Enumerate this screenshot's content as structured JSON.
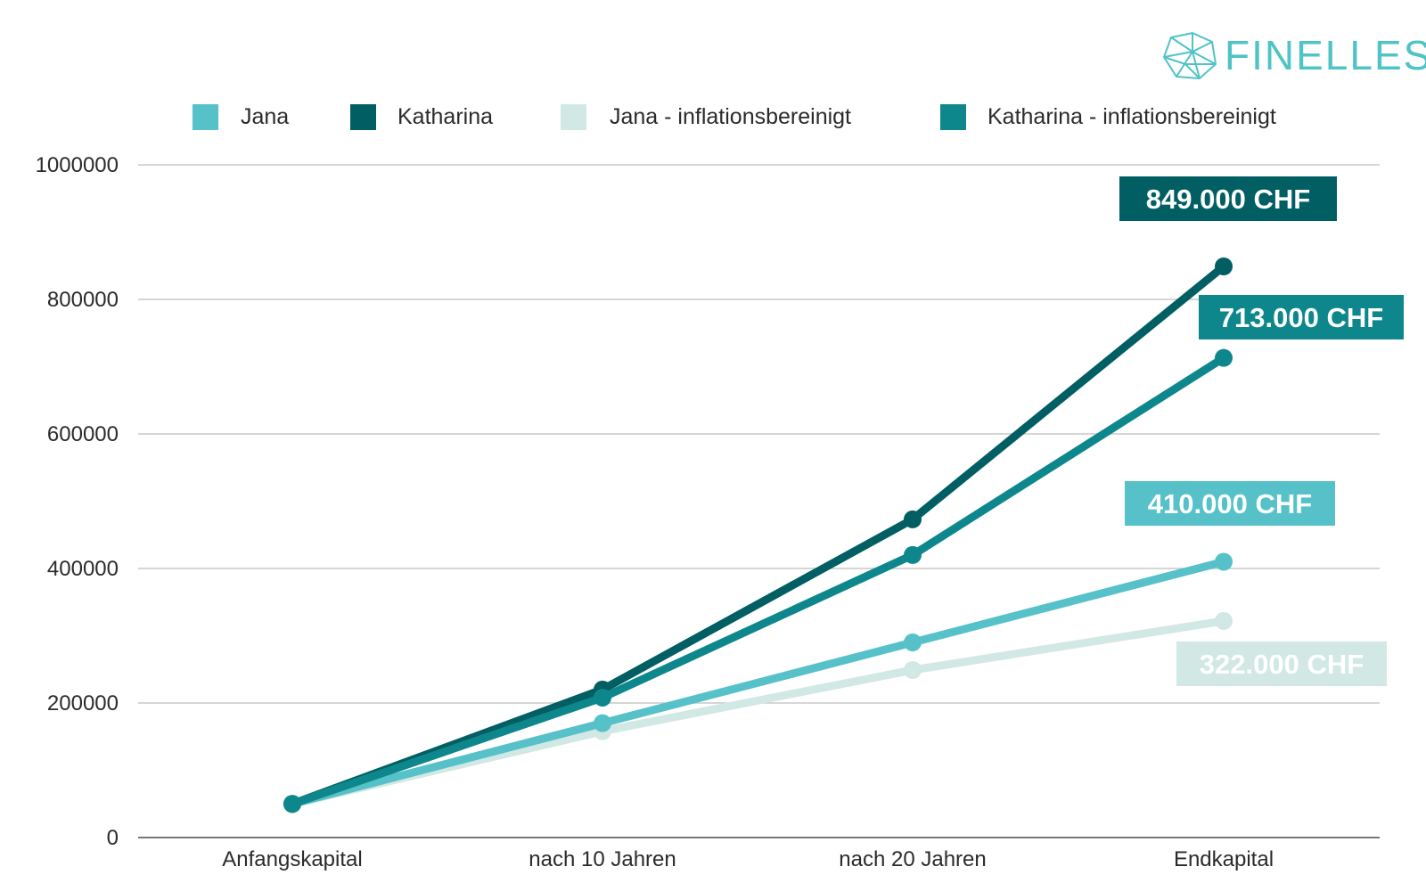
{
  "brand": {
    "name": "FINELLES",
    "color": "#4fc3c6",
    "icon": "geodesic-polyhedron-icon"
  },
  "chart_data": {
    "type": "line",
    "categories": [
      "Anfangskapital",
      "nach 10 Jahren",
      "nach 20 Jahren",
      "Endkapital"
    ],
    "ylim": [
      0,
      1000000
    ],
    "yticks": [
      "0",
      "200000",
      "400000",
      "600000",
      "800000",
      "1000000"
    ],
    "grid": true,
    "legend_position": "top",
    "series": [
      {
        "name": "Jana",
        "color": "#56c1c8",
        "values": [
          50000,
          170000,
          290000,
          410000
        ]
      },
      {
        "name": "Katharina",
        "color": "#015f63",
        "values": [
          50000,
          220000,
          473000,
          849000
        ]
      },
      {
        "name": "Jana - inflationsbereinigt",
        "color": "#d2e8e4",
        "values": [
          50000,
          158000,
          249000,
          322000
        ]
      },
      {
        "name": "Katharina - inflationsbereinigt",
        "color": "#0d878c",
        "values": [
          50000,
          208000,
          420000,
          713000
        ]
      }
    ],
    "annotations": [
      {
        "text": "849.000 CHF",
        "series": "Katharina",
        "color": "#015f63"
      },
      {
        "text": "713.000 CHF",
        "series": "Katharina - inflationsbereinigt",
        "color": "#0d878c"
      },
      {
        "text": "410.000 CHF",
        "series": "Jana",
        "color": "#56c1c8"
      },
      {
        "text": "322.000 CHF",
        "series": "Jana - inflationsbereinigt",
        "color": "#d2e8e4"
      }
    ]
  }
}
